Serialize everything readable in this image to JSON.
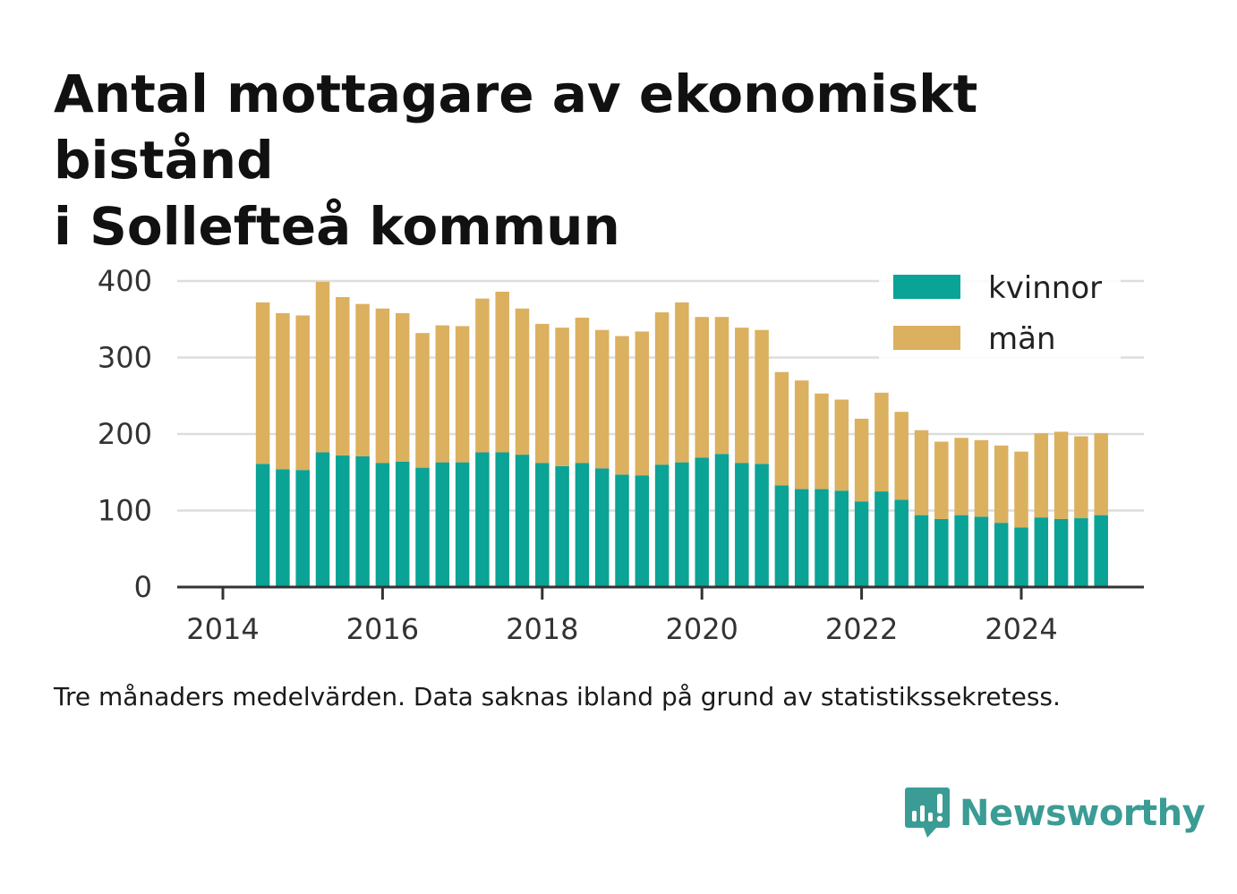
{
  "title_lines": [
    "Antal mottagare av ekonomiskt bistånd",
    "i Sollefteå kommun"
  ],
  "note": "Tre månaders medelvärden. Data saknas ibland på grund av statistikssekretess.",
  "brand": "Newsworthy",
  "colors": {
    "kvinnor": "#0aa396",
    "man": "#dbb05f",
    "grid": "#dddddd",
    "axis": "#333333",
    "text": "#333333",
    "brand": "#3a9c94"
  },
  "chart_data": {
    "type": "bar",
    "stacked": true,
    "legend_position": "top-right",
    "grid": true,
    "ylim": [
      0,
      400
    ],
    "yticks": [
      0,
      100,
      200,
      300,
      400
    ],
    "xticks": [
      "2014",
      "2016",
      "2018",
      "2020",
      "2022",
      "2024"
    ],
    "categories": [
      "2014 Q2",
      "2014 Q3",
      "2014 Q4",
      "2015 Q1",
      "2015 Q2",
      "2015 Q3",
      "2015 Q4",
      "2016 Q1",
      "2016 Q2",
      "2016 Q3",
      "2016 Q4",
      "2017 Q1",
      "2017 Q2",
      "2017 Q3",
      "2017 Q4",
      "2018 Q1",
      "2018 Q2",
      "2018 Q3",
      "2018 Q4",
      "2019 Q1",
      "2019 Q2",
      "2019 Q3",
      "2019 Q4",
      "2020 Q1",
      "2020 Q2",
      "2020 Q3",
      "2020 Q4",
      "2021 Q1",
      "2021 Q2",
      "2021 Q3",
      "2021 Q4",
      "2022 Q1",
      "2022 Q2",
      "2022 Q3",
      "2022 Q4",
      "2023 Q1",
      "2023 Q2",
      "2023 Q3",
      "2023 Q4",
      "2024 Q1",
      "2024 Q2",
      "2024 Q3",
      "2024 Q4"
    ],
    "series": [
      {
        "name": "kvinnor",
        "values": [
          161,
          154,
          153,
          176,
          172,
          171,
          162,
          164,
          156,
          163,
          163,
          176,
          176,
          173,
          162,
          158,
          162,
          155,
          147,
          146,
          160,
          163,
          169,
          174,
          162,
          161,
          133,
          128,
          128,
          126,
          112,
          125,
          114,
          94,
          89,
          94,
          92,
          84,
          78,
          91,
          89,
          90,
          94
        ]
      },
      {
        "name": "män",
        "values": [
          211,
          204,
          202,
          223,
          207,
          199,
          202,
          194,
          176,
          179,
          178,
          201,
          210,
          191,
          182,
          181,
          190,
          181,
          181,
          188,
          199,
          209,
          184,
          179,
          177,
          175,
          148,
          142,
          125,
          119,
          108,
          129,
          115,
          111,
          101,
          101,
          100,
          101,
          99,
          110,
          114,
          107,
          107
        ]
      }
    ]
  }
}
